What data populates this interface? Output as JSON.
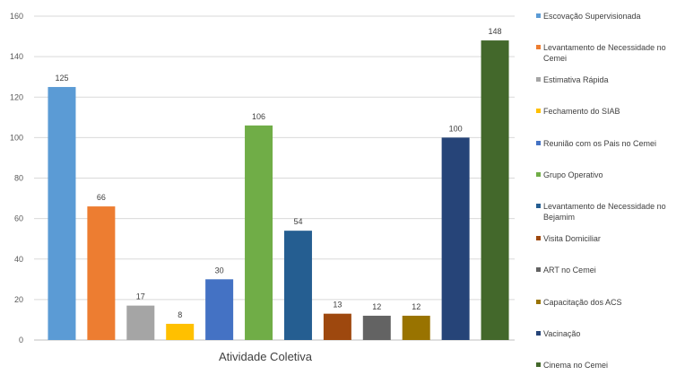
{
  "chart_data": {
    "type": "bar",
    "xlabel": "Atividade Coletiva",
    "ylim": [
      0,
      160
    ],
    "yticks": [
      0,
      20,
      40,
      60,
      80,
      100,
      120,
      140,
      160
    ],
    "grid": true,
    "legend_position": "right",
    "series": [
      {
        "name": "Escovação Supervisionada",
        "value": 125,
        "color": "#5b9bd5"
      },
      {
        "name": "Levantamento de Necessidade no Cemei",
        "value": 66,
        "color": "#ed7d31"
      },
      {
        "name": "Estimativa Rápida",
        "value": 17,
        "color": "#a5a5a5"
      },
      {
        "name": "Fechamento do SIAB",
        "value": 8,
        "color": "#ffc000"
      },
      {
        "name": "Reunião com os Pais no Cemei",
        "value": 30,
        "color": "#4472c4"
      },
      {
        "name": "Grupo Operativo",
        "value": 106,
        "color": "#70ad47"
      },
      {
        "name": "Levantamento de Necessidade no Bejamim",
        "value": 54,
        "color": "#255e91"
      },
      {
        "name": "Visita Domiciliar",
        "value": 13,
        "color": "#9e480e"
      },
      {
        "name": "ART no Cemei",
        "value": 12,
        "color": "#636363"
      },
      {
        "name": "Capacitação dos ACS",
        "value": 12,
        "color": "#997300"
      },
      {
        "name": "Vacinação",
        "value": 100,
        "color": "#264478"
      },
      {
        "name": "Cinema no Cemei",
        "value": 148,
        "color": "#43682b"
      }
    ]
  }
}
